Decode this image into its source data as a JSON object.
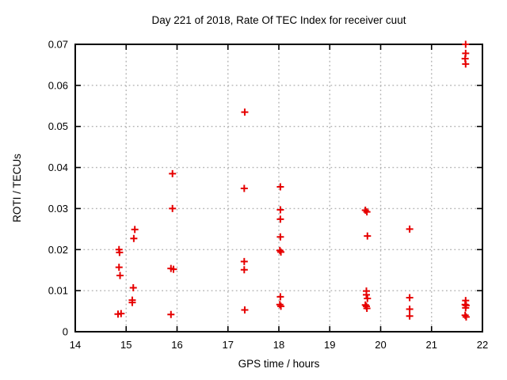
{
  "window": {
    "background": "#ffffff"
  },
  "chart_data": {
    "type": "scatter",
    "title": "Day 221 of 2018, Rate Of TEC Index for receiver cuut",
    "xlabel": "GPS time / hours",
    "ylabel": "ROTI / TECUs",
    "xlim": [
      14,
      22
    ],
    "ylim": [
      0,
      0.07
    ],
    "xticks": [
      14,
      15,
      16,
      17,
      18,
      19,
      20,
      21,
      22
    ],
    "xtick_labels": [
      "14",
      "15",
      "16",
      "17",
      "18",
      "19",
      "20",
      "21",
      "22"
    ],
    "yticks": [
      0,
      0.01,
      0.02,
      0.03,
      0.04,
      0.05,
      0.06,
      0.07
    ],
    "ytick_labels": [
      "0",
      "0.01",
      "0.02",
      "0.03",
      "0.04",
      "0.05",
      "0.06",
      "0.07"
    ],
    "grid": true,
    "legend": "none",
    "marker": {
      "shape": "plus",
      "color": "#e60000",
      "size": 9,
      "stroke_width": 2
    },
    "colors": {
      "axis": "#000000",
      "grid": "#b4b4b4",
      "background": "#ffffff",
      "marker": "#e60000"
    },
    "series": [
      {
        "name": "ROTI",
        "points": [
          [
            14.84,
            0.0043
          ],
          [
            14.9,
            0.0044
          ],
          [
            14.88,
            0.0137
          ],
          [
            14.86,
            0.0157
          ],
          [
            14.86,
            0.02
          ],
          [
            14.87,
            0.0193
          ],
          [
            15.14,
            0.0107
          ],
          [
            15.12,
            0.0077
          ],
          [
            15.12,
            0.0071
          ],
          [
            15.15,
            0.0227
          ],
          [
            15.17,
            0.0249
          ],
          [
            15.88,
            0.0042
          ],
          [
            15.88,
            0.0154
          ],
          [
            15.93,
            0.0152
          ],
          [
            15.91,
            0.03
          ],
          [
            15.91,
            0.0385
          ],
          [
            17.33,
            0.0535
          ],
          [
            17.32,
            0.0349
          ],
          [
            17.32,
            0.0171
          ],
          [
            17.32,
            0.0151
          ],
          [
            17.33,
            0.0053
          ],
          [
            18.03,
            0.0353
          ],
          [
            18.03,
            0.0297
          ],
          [
            18.03,
            0.0274
          ],
          [
            18.03,
            0.0231
          ],
          [
            18.02,
            0.0198
          ],
          [
            18.04,
            0.0194
          ],
          [
            18.03,
            0.0085
          ],
          [
            18.02,
            0.0066
          ],
          [
            18.04,
            0.0062
          ],
          [
            19.7,
            0.0296
          ],
          [
            19.73,
            0.0292
          ],
          [
            19.74,
            0.0233
          ],
          [
            19.72,
            0.0099
          ],
          [
            19.72,
            0.009
          ],
          [
            19.74,
            0.0081
          ],
          [
            19.7,
            0.0065
          ],
          [
            19.72,
            0.0062
          ],
          [
            19.73,
            0.0057
          ],
          [
            20.57,
            0.025
          ],
          [
            20.57,
            0.0083
          ],
          [
            20.57,
            0.0055
          ],
          [
            20.57,
            0.0038
          ],
          [
            21.67,
            0.07
          ],
          [
            21.67,
            0.0678
          ],
          [
            21.66,
            0.0665
          ],
          [
            21.67,
            0.0652
          ],
          [
            21.67,
            0.0076
          ],
          [
            21.66,
            0.0066
          ],
          [
            21.68,
            0.0064
          ],
          [
            21.67,
            0.0058
          ],
          [
            21.66,
            0.004
          ],
          [
            21.68,
            0.0036
          ]
        ]
      }
    ]
  }
}
